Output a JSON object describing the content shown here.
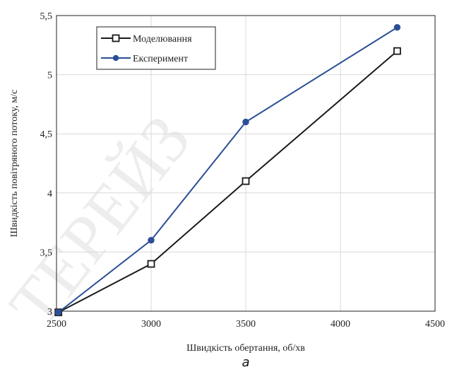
{
  "chart_data": {
    "type": "line",
    "xlabel": "Швидкість обертання, об/хв",
    "ylabel": "Швидкість повітряного потоку, м/с",
    "xlim": [
      2500,
      4500
    ],
    "ylim": [
      3,
      5.5
    ],
    "x_ticks": [
      2500,
      3000,
      3500,
      4000,
      4500
    ],
    "x_tick_labels": [
      "2500",
      "3000",
      "3500",
      "4000",
      "4500"
    ],
    "y_ticks": [
      3,
      3.5,
      4,
      4.5,
      5,
      5.5
    ],
    "y_tick_labels": [
      "3",
      "3,5",
      "4",
      "4,5",
      "5",
      "5,5"
    ],
    "grid": true,
    "legend_position": "top-left",
    "series": [
      {
        "name": "Моделювання",
        "color": "#1a1a1a",
        "marker": "square-open",
        "x": [
          2510,
          3000,
          3500,
          4300
        ],
        "y": [
          2.99,
          3.4,
          4.1,
          5.2
        ]
      },
      {
        "name": "Експеримент",
        "color": "#2b4f96",
        "marker": "circle-filled",
        "x": [
          2510,
          3000,
          3500,
          4300
        ],
        "y": [
          2.99,
          3.6,
          4.6,
          5.4
        ]
      }
    ]
  },
  "caption": "а",
  "watermark": "ТЕРЕЙЗ"
}
